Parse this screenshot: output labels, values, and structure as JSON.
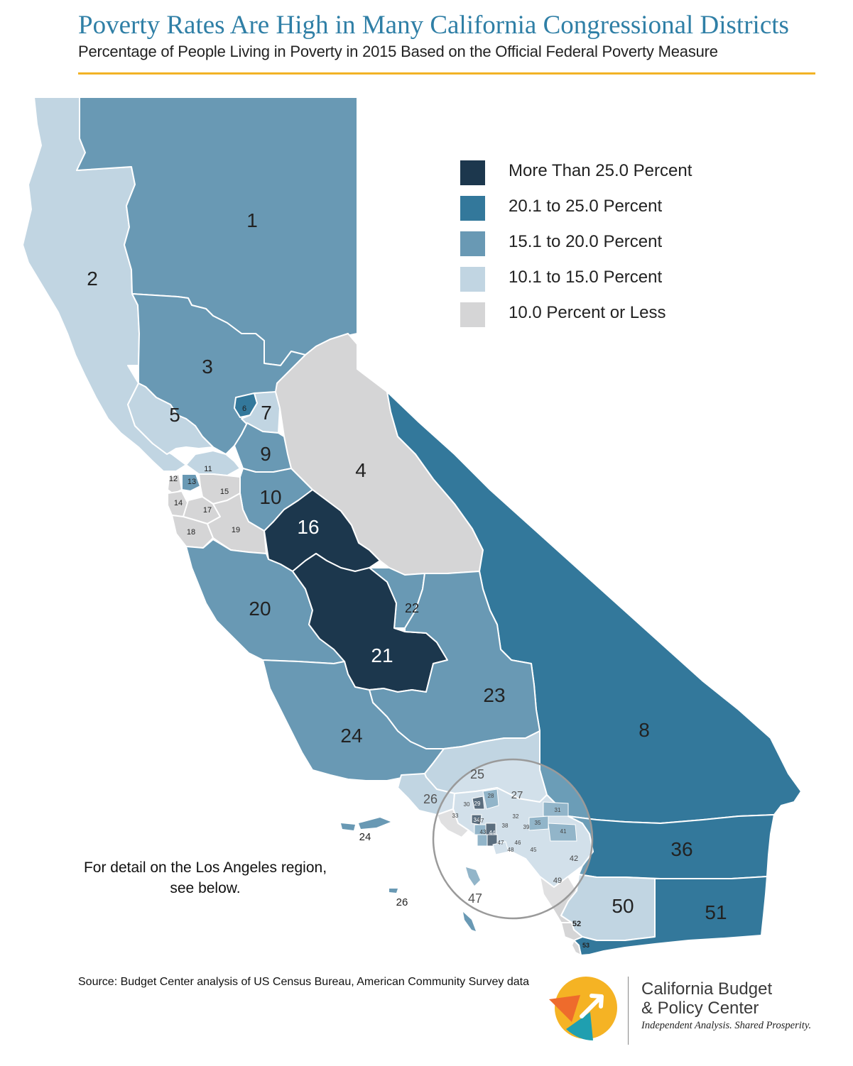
{
  "title": "Poverty Rates Are High in Many California Congressional Districts",
  "subtitle": "Percentage of People Living in Poverty in 2015 Based on the Official Federal Poverty Measure",
  "legend": [
    {
      "label": "More Than 25.0 Percent",
      "color": "#1c374d"
    },
    {
      "label": "20.1 to 25.0 Percent",
      "color": "#33789b"
    },
    {
      "label": "15.1 to 20.0 Percent",
      "color": "#6999b4"
    },
    {
      "label": "10.1 to 15.0 Percent",
      "color": "#c1d5e2"
    },
    {
      "label": "10.0 Percent or Less",
      "color": "#d5d5d6"
    }
  ],
  "district_labels": {
    "d1": "1",
    "d2": "2",
    "d3": "3",
    "d4": "4",
    "d5": "5",
    "d6": "6",
    "d7": "7",
    "d8": "8",
    "d9": "9",
    "d10": "10",
    "d11": "11",
    "d12": "12",
    "d13": "13",
    "d14": "14",
    "d15": "15",
    "d16": "16",
    "d17": "17",
    "d18": "18",
    "d19": "19",
    "d20": "20",
    "d21": "21",
    "d22": "22",
    "d23": "23",
    "d24": "24",
    "d24i": "24",
    "d25": "25",
    "d26": "26",
    "d26i": "26",
    "d27": "27",
    "d28": "28",
    "d29": "29",
    "d30": "30",
    "d31": "31",
    "d32": "32",
    "d33": "33",
    "d34": "34",
    "d35": "35",
    "d37": "37",
    "d38": "38",
    "d39": "39",
    "d41": "41",
    "d42": "42",
    "d43": "43",
    "d44": "44",
    "d45": "45",
    "d46": "46",
    "d47": "47",
    "d48": "48",
    "d49": "49",
    "d36": "36",
    "d50": "50",
    "d51": "51",
    "d52": "52",
    "d53": "53"
  },
  "la_note": "For detail on the Los Angeles region, see below.",
  "source": "Source: Budget Center analysis of US Census Bureau, American Community Survey data",
  "organization": {
    "name": "California Budget\n& Policy Center",
    "tagline": "Independent Analysis. Shared Prosperity.",
    "logo_colors": {
      "yellow": "#f5b324",
      "orange": "#ee6b2c",
      "teal": "#1f9fb0"
    }
  }
}
